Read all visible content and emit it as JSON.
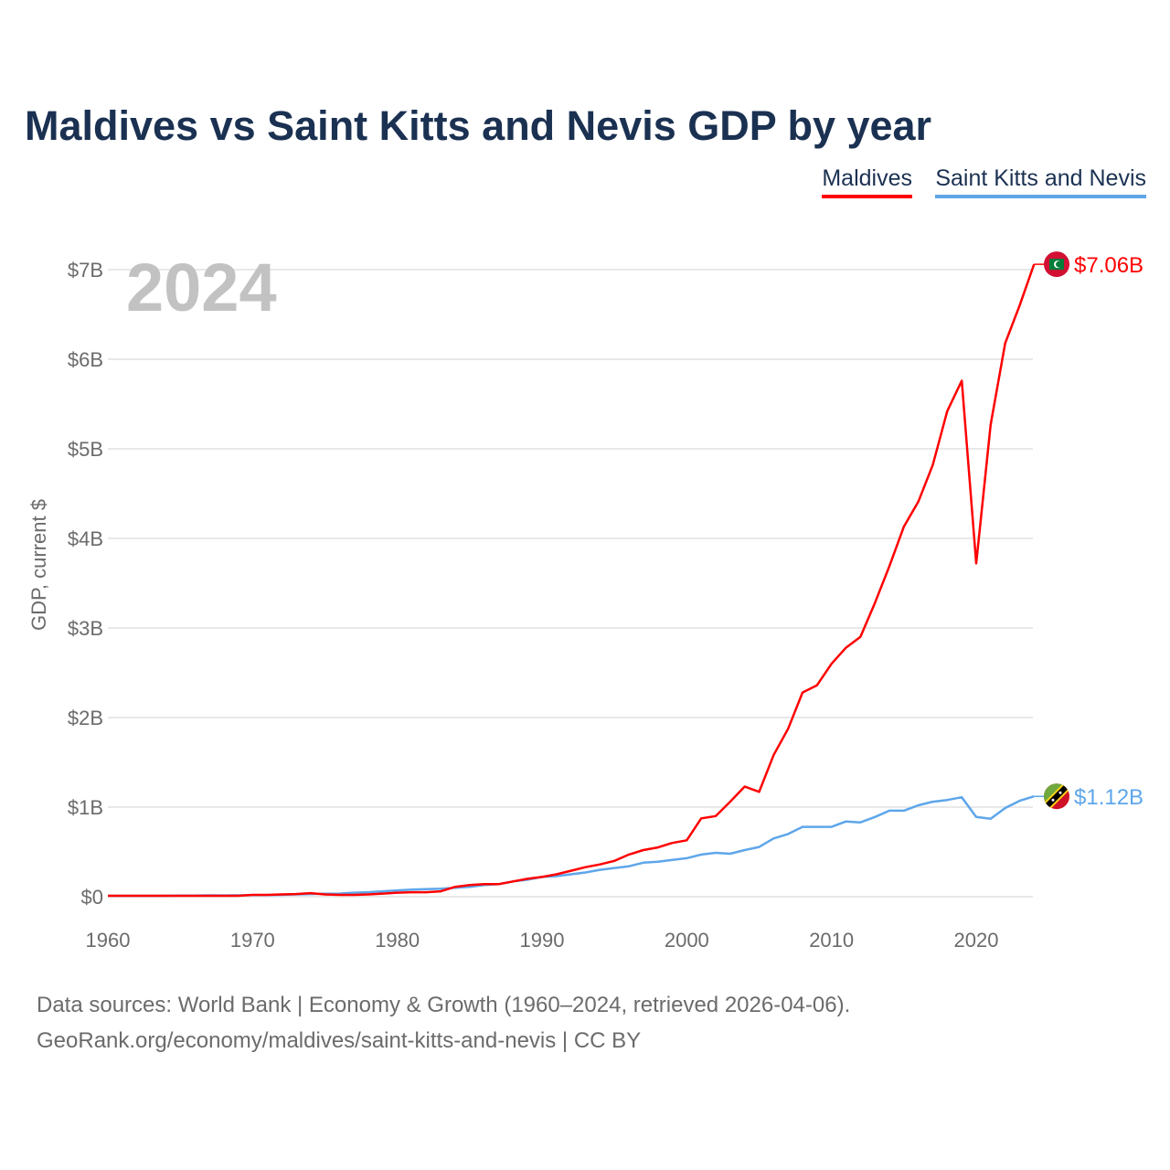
{
  "title": "Maldives vs Saint Kitts and Nevis GDP by year",
  "year_label": "2024",
  "sources": [
    "Data sources: World Bank | Economy & Growth (1960–2024, retrieved 2026-04-06).",
    "GeoRank.org/economy/maldives/saint-kitts-and-nevis | CC BY"
  ],
  "chart_data": {
    "type": "line",
    "title": "Maldives vs Saint Kitts and Nevis GDP by year",
    "ylabel": "GDP, current $",
    "xlabel": "",
    "xlim": [
      1960,
      2024
    ],
    "ylim": [
      0,
      7
    ],
    "grid": true,
    "legend": "top-right",
    "x_ticks": [
      "1960",
      "1970",
      "1980",
      "1990",
      "2000",
      "2010",
      "2020"
    ],
    "y_ticks": [
      "$0",
      "$1B",
      "$2B",
      "$3B",
      "$4B",
      "$5B",
      "$6B",
      "$7B"
    ],
    "x": [
      1960,
      1961,
      1962,
      1963,
      1964,
      1965,
      1966,
      1967,
      1968,
      1969,
      1970,
      1971,
      1972,
      1973,
      1974,
      1975,
      1976,
      1977,
      1978,
      1979,
      1980,
      1981,
      1982,
      1983,
      1984,
      1985,
      1986,
      1987,
      1988,
      1989,
      1990,
      1991,
      1992,
      1993,
      1994,
      1995,
      1996,
      1997,
      1998,
      1999,
      2000,
      2001,
      2002,
      2003,
      2004,
      2005,
      2006,
      2007,
      2008,
      2009,
      2010,
      2011,
      2012,
      2013,
      2014,
      2015,
      2016,
      2017,
      2018,
      2019,
      2020,
      2021,
      2022,
      2023,
      2024
    ],
    "series": [
      {
        "name": "Maldives",
        "color": "#ff0000",
        "end_label": "$7.06B",
        "values": [
          0.01,
          0.01,
          0.01,
          0.01,
          0.01,
          0.01,
          0.01,
          0.01,
          0.01,
          0.01,
          0.02,
          0.02,
          0.025,
          0.03,
          0.04,
          0.025,
          0.02,
          0.02,
          0.025,
          0.035,
          0.045,
          0.05,
          0.05,
          0.06,
          0.11,
          0.13,
          0.14,
          0.14,
          0.17,
          0.2,
          0.22,
          0.25,
          0.29,
          0.33,
          0.36,
          0.4,
          0.47,
          0.52,
          0.55,
          0.6,
          0.63,
          0.875,
          0.9,
          1.06,
          1.23,
          1.17,
          1.58,
          1.875,
          2.28,
          2.36,
          2.6,
          2.78,
          2.9,
          3.28,
          3.69,
          4.13,
          4.41,
          4.82,
          5.42,
          5.76,
          3.72,
          5.27,
          6.18,
          6.6,
          7.06
        ]
      },
      {
        "name": "Saint Kitts and Nevis",
        "color": "#5ea6ea",
        "end_label": "$1.12B",
        "values": [
          0.01,
          0.01,
          0.01,
          0.01,
          0.01,
          0.012,
          0.013,
          0.015,
          0.014,
          0.015,
          0.017,
          0.018,
          0.02,
          0.025,
          0.03,
          0.033,
          0.035,
          0.045,
          0.05,
          0.06,
          0.07,
          0.08,
          0.085,
          0.09,
          0.1,
          0.11,
          0.13,
          0.14,
          0.17,
          0.19,
          0.22,
          0.23,
          0.25,
          0.27,
          0.3,
          0.32,
          0.34,
          0.38,
          0.39,
          0.41,
          0.43,
          0.47,
          0.49,
          0.48,
          0.52,
          0.555,
          0.65,
          0.7,
          0.78,
          0.78,
          0.78,
          0.84,
          0.83,
          0.89,
          0.96,
          0.96,
          1.02,
          1.06,
          1.08,
          1.11,
          0.89,
          0.87,
          0.99,
          1.07,
          1.12
        ]
      }
    ]
  }
}
